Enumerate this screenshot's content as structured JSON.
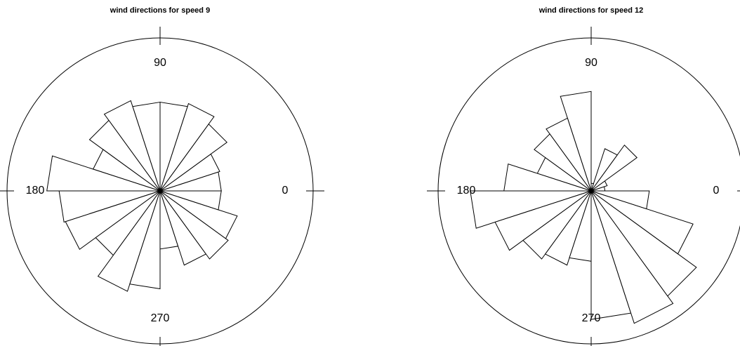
{
  "chart_data": [
    {
      "type": "rose",
      "title": "wind directions for speed 9",
      "values": [
        40,
        41,
        54,
        60,
        58,
        58,
        62,
        57,
        46,
        74,
        66,
        65,
        52,
        69,
        64,
        38,
        51,
        55,
        53,
        40
      ],
      "rlim": [
        0,
        100
      ],
      "angle_ticks": [
        0,
        90,
        180,
        270
      ],
      "color": "#ffffff"
    },
    {
      "type": "rose",
      "title": "wind directions for speed 12",
      "values": [
        9,
        11,
        37,
        29,
        5,
        65,
        50,
        46,
        37,
        57,
        79,
        66,
        55,
        51,
        46,
        84,
        91,
        85,
        70,
        38
      ],
      "rlim": [
        0,
        100
      ],
      "angle_ticks": [
        0,
        90,
        180,
        270
      ],
      "color": "#ffffff"
    }
  ]
}
